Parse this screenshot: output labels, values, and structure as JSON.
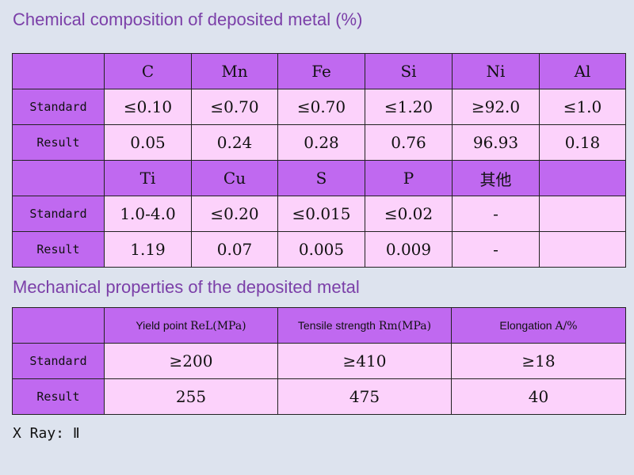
{
  "chem_title": "Chemical composition of deposited metal (%)",
  "chem": {
    "header1": [
      "C",
      "Mn",
      "Fe",
      "Si",
      "Ni",
      "Al"
    ],
    "standard1": [
      "≤0.10",
      "≤0.70",
      "≤0.70",
      "≤1.20",
      "≥92.0",
      "≤1.0"
    ],
    "result1": [
      "0.05",
      "0.24",
      "0.28",
      "0.76",
      "96.93",
      "0.18"
    ],
    "header2": [
      "Ti",
      "Cu",
      "S",
      "P",
      "其他",
      ""
    ],
    "standard2": [
      "1.0-4.0",
      "≤0.20",
      "≤0.015",
      "≤0.02",
      "-",
      ""
    ],
    "result2": [
      "1.19",
      "0.07",
      "0.005",
      "0.009",
      "-",
      ""
    ]
  },
  "labels": {
    "standard": "Standard",
    "result": "Result"
  },
  "mech_title": "Mechanical properties of the deposited metal",
  "mech": {
    "headers": [
      {
        "name": "Yield point ",
        "unit": "ReL(MPa)"
      },
      {
        "name": "Tensile strength ",
        "unit": "Rm(MPa)"
      },
      {
        "name": "Elongation ",
        "unit": "A/%"
      }
    ],
    "standard": [
      "≥200",
      "≥410",
      "≥18"
    ],
    "result": [
      "255",
      "475",
      "40"
    ]
  },
  "xray": "X Ray: Ⅱ"
}
